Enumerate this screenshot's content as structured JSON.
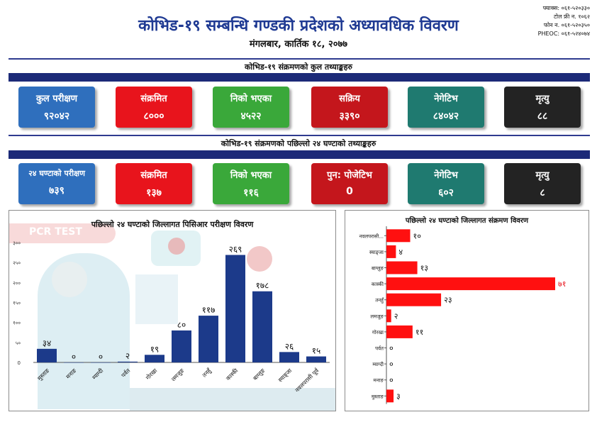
{
  "header": {
    "title": "कोभिड-१९ सम्बन्धि गण्डकी प्रदेशको अध्यावधिक विवरण",
    "date": "मंगलबार, कार्तिक १८, २०७७",
    "contact": [
      "फ्याक्स: ०६१-५२०३३०",
      "टोल फ्री न. १०६२",
      "फोन न. ०६१-५२०३५०",
      "PHEOC: ०६१-५२४०७४"
    ]
  },
  "colors": {
    "blue": "#2f6fbd",
    "red": "#e8141c",
    "green": "#3aa83a",
    "darkred": "#c4161c",
    "teal": "#1f7a70",
    "black": "#232323",
    "bar_blue": "#1c3a8a",
    "bar_red": "#ff1010"
  },
  "total": {
    "title": "कोभिड-१९ संक्रमणको कुल तथ्याङ्कहरु",
    "cards": [
      {
        "label": "कुल परीक्षण",
        "value": "९२०४२",
        "color": "#2f6fbd"
      },
      {
        "label": "संक्रमित",
        "value": "८०००",
        "color": "#e8141c"
      },
      {
        "label": "निको भएका",
        "value": "४५२२",
        "color": "#3aa83a"
      },
      {
        "label": "सक्रिय",
        "value": "३३९०",
        "color": "#c4161c"
      },
      {
        "label": "नेगेटिभ",
        "value": "८४०४२",
        "color": "#1f7a70"
      },
      {
        "label": "मृत्यु",
        "value": "८८",
        "color": "#232323"
      }
    ]
  },
  "last24": {
    "title": "कोभिड-१९ संक्रमणको पछिल्लो २४ घण्टाको तथ्याङ्कहरु",
    "cards": [
      {
        "label": "२४ घण्टाको परीक्षण",
        "value": "७३९",
        "color": "#2f6fbd"
      },
      {
        "label": "संक्रमित",
        "value": "१३७",
        "color": "#e8141c"
      },
      {
        "label": "निको भएका",
        "value": "११६",
        "color": "#3aa83a"
      },
      {
        "label": "पुन: पोजेटिभ",
        "value": "0",
        "color": "#c4161c"
      },
      {
        "label": "नेगेटिभ",
        "value": "६०२",
        "color": "#1f7a70"
      },
      {
        "label": "मृत्यु",
        "value": "८",
        "color": "#232323"
      }
    ]
  },
  "pcr_panel": {
    "watermark_top": "PCR TEST",
    "watermark_bottom": "PCR"
  },
  "chart_data": [
    {
      "type": "bar",
      "title": "पछिल्लो २४ घण्टाको जिल्लागत पिसिआर परीक्षण विवरण",
      "categories": [
        "मुस्ताङ",
        "मनाङ",
        "म्याग्दी",
        "पर्वत",
        "गोरखा",
        "लमजुङ",
        "तनहुँ",
        "कास्की",
        "बाग्लुङ",
        "स्याङ्जा",
        "नवलपरासी पूर्व"
      ],
      "values": [
        34,
        0,
        0,
        2,
        19,
        80,
        117,
        269,
        178,
        26,
        15
      ],
      "value_labels": [
        "३४",
        "०",
        "०",
        "२",
        "१९",
        "८०",
        "११७",
        "२६९",
        "१७८",
        "२६",
        "१५"
      ],
      "yticks": [
        "0",
        "५०",
        "१००",
        "१५०",
        "२००",
        "२५०",
        "३००"
      ],
      "ylim": [
        0,
        300
      ],
      "orientation": "vertical"
    },
    {
      "type": "bar",
      "title": "पछिल्लो २४ घण्टाको जिल्लागत संक्रमण विवरण",
      "categories": [
        "नवलपरासी...",
        "स्याङ्जा",
        "बाग्लुङ",
        "कास्की",
        "तनहुँ",
        "लमजुङ",
        "गोरखा",
        "पर्वत",
        "म्याग्दी",
        "मनाङ",
        "मुस्ताङ"
      ],
      "values": [
        10,
        4,
        13,
        71,
        23,
        2,
        11,
        0,
        0,
        0,
        3
      ],
      "value_labels": [
        "१०",
        "४",
        "१३",
        "७१",
        "२३",
        "२",
        "११",
        "०",
        "०",
        "०",
        "३"
      ],
      "orientation": "horizontal"
    }
  ]
}
